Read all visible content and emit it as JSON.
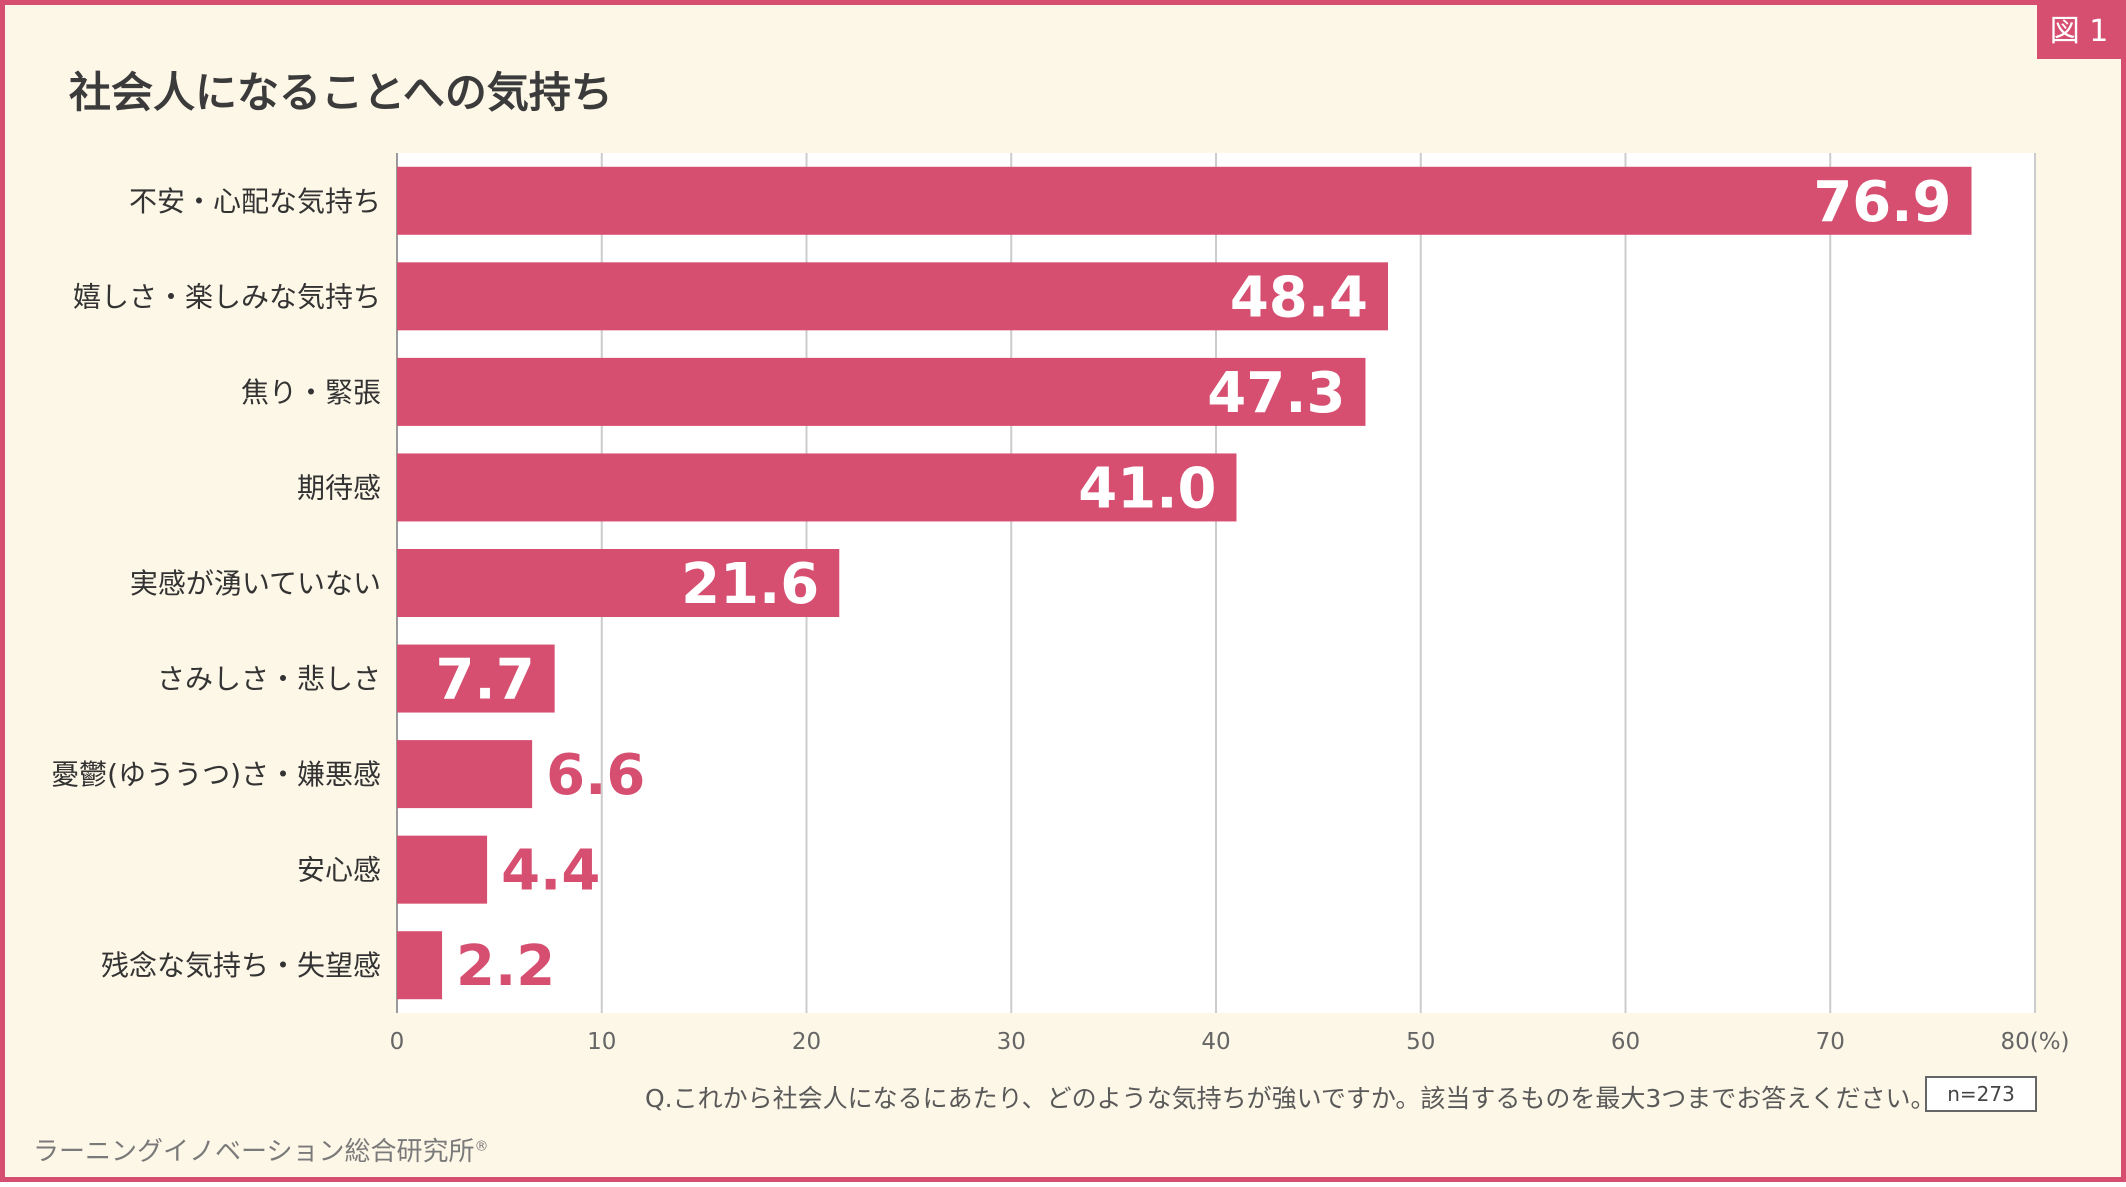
{
  "figure_label": "図 1",
  "header": {
    "title": "社会人になることへの気持ち"
  },
  "footer": {
    "question": "Q.これから社会人になるにあたり、どのような気持ちが強いですか。該当するものを最大3つまでお答えください。",
    "sample": "n=273",
    "credit": "ラーニングイノベーション総合研究所",
    "credit_mark": "®"
  },
  "colors": {
    "bar": "#d64f70",
    "frame": "#d64f70",
    "background": "#fdf7e7",
    "grid": "#cccccc"
  },
  "chart_data": {
    "type": "bar",
    "orientation": "horizontal",
    "title": "社会人になることへの気持ち",
    "categories": [
      "不安・心配な気持ち",
      "嬉しさ・楽しみな気持ち",
      "焦り・緊張",
      "期待感",
      "実感が湧いていない",
      "さみしさ・悲しさ",
      "憂鬱(ゆううつ)さ・嫌悪感",
      "安心感",
      "残念な気持ち・失望感"
    ],
    "values": [
      76.9,
      48.4,
      47.3,
      41.0,
      21.6,
      7.7,
      6.6,
      4.4,
      2.2
    ],
    "value_labels": [
      "76.9",
      "48.4",
      "47.3",
      "41.0",
      "21.6",
      "7.7",
      "6.6",
      "4.4",
      "2.2"
    ],
    "xlim": [
      0,
      80
    ],
    "x_ticks": [
      "0",
      "10",
      "20",
      "30",
      "40",
      "50",
      "60",
      "70",
      "80(%)"
    ],
    "grid": true
  }
}
